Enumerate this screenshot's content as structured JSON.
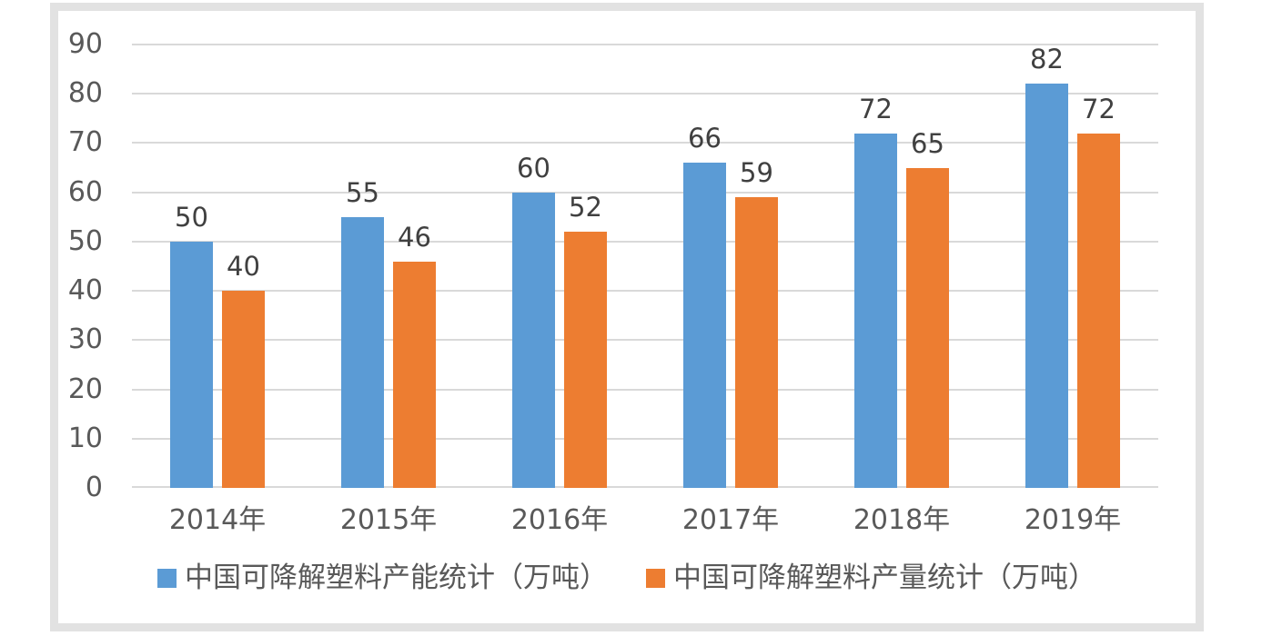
{
  "chart_data": {
    "type": "bar",
    "categories": [
      "2014年",
      "2015年",
      "2016年",
      "2017年",
      "2018年",
      "2019年"
    ],
    "series": [
      {
        "name": "中国可降解塑料产能统计（万吨）",
        "color": "#5B9BD5",
        "values": [
          50,
          55,
          60,
          66,
          72,
          82
        ]
      },
      {
        "name": "中国可降解塑料产量统计（万吨）",
        "color": "#ED7D31",
        "values": [
          40,
          46,
          52,
          59,
          65,
          72
        ]
      }
    ],
    "title": "",
    "xlabel": "",
    "ylabel": "",
    "ylim": [
      0,
      90
    ],
    "yticks": [
      0,
      10,
      20,
      30,
      40,
      50,
      60,
      70,
      80,
      90
    ],
    "grid": "horizontal",
    "data_labels": true,
    "legend_position": "bottom"
  },
  "colors": {
    "series1": "#5B9BD5",
    "series2": "#ED7D31",
    "gridline": "#D9D9D9",
    "axis_text": "#595959",
    "data_label_text": "#404040",
    "frame_border": "#E2E2E2",
    "background": "#FFFFFF"
  }
}
